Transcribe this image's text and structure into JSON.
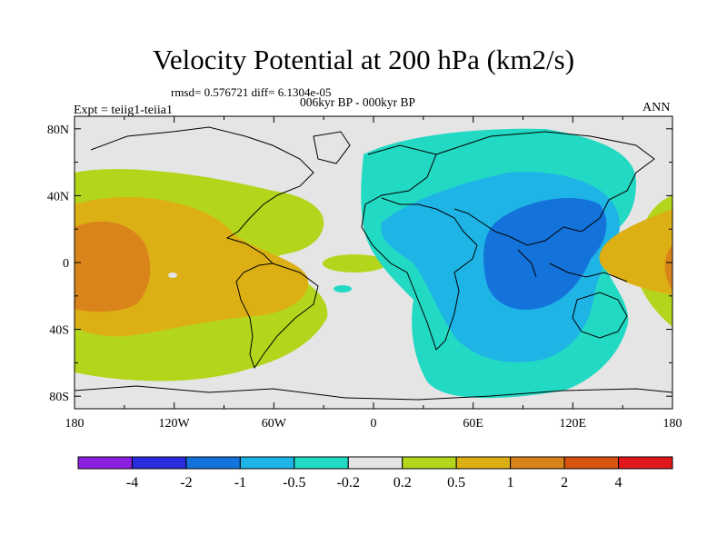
{
  "header": {
    "title": "Velocity Potential at 200 hPa (km2/s)",
    "stats": "rmsd= 0.576721 diff= 6.1304e-05",
    "period": "006kyr BP - 000kyr BP",
    "experiment": "Expt = teiig1-teiia1",
    "season": "ANN"
  },
  "axes": {
    "lat_ticks": [
      {
        "value": 80,
        "label": "80N"
      },
      {
        "value": 40,
        "label": "40N"
      },
      {
        "value": 0,
        "label": "0"
      },
      {
        "value": -40,
        "label": "40S"
      },
      {
        "value": -80,
        "label": "80S"
      }
    ],
    "lon_ticks": [
      {
        "value": -180,
        "label": "180"
      },
      {
        "value": -120,
        "label": "120W"
      },
      {
        "value": -60,
        "label": "60W"
      },
      {
        "value": 0,
        "label": "0"
      },
      {
        "value": 60,
        "label": "60E"
      },
      {
        "value": 120,
        "label": "120E"
      },
      {
        "value": 180,
        "label": "180"
      }
    ]
  },
  "colorbar": {
    "colors": [
      "#8B1FE0",
      "#2B2BDE",
      "#1473DB",
      "#1EB4E6",
      "#22D9C4",
      "#E5E5E5",
      "#B3D61C",
      "#DCB014",
      "#D9841A",
      "#D9520F",
      "#E0181C"
    ],
    "labels": [
      "-4",
      "-2",
      "-1",
      "-0.5",
      "-0.2",
      "0.2",
      "0.5",
      "1",
      "2",
      "4"
    ]
  },
  "colors": {
    "missing": "#E5E5E5",
    "coastline": "#000000"
  }
}
